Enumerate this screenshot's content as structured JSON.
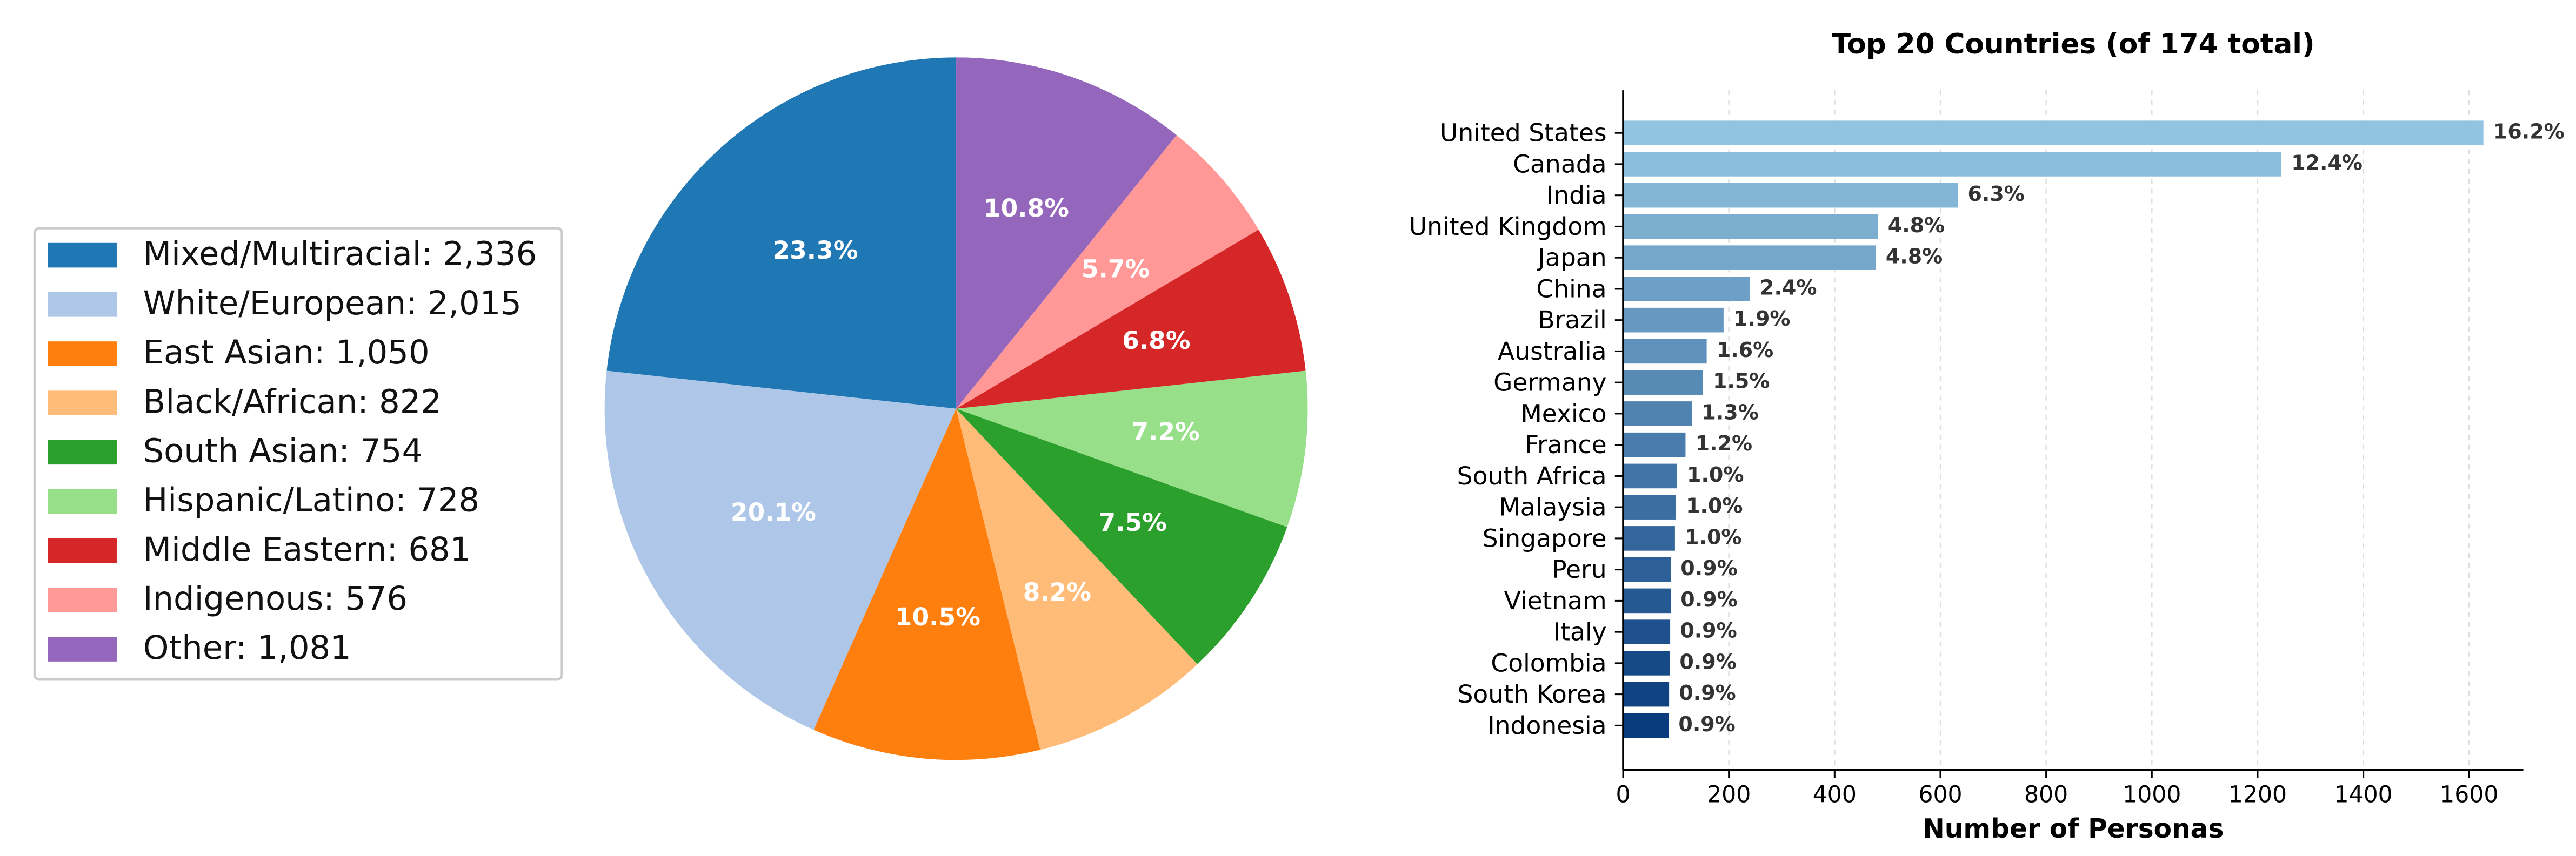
{
  "chart_data": [
    {
      "type": "pie",
      "categories": [
        "Mixed/Multiracial: 2,336",
        "White/European: 2,015",
        "East Asian: 1,050",
        "Black/African: 822",
        "South Asian: 754",
        "Hispanic/Latino: 728",
        "Middle Eastern: 681",
        "Indigenous: 576",
        "Other: 1,081"
      ],
      "values": [
        23.3,
        20.1,
        10.5,
        8.2,
        7.5,
        7.2,
        6.8,
        5.7,
        10.8
      ],
      "value_labels": [
        "23.3%",
        "20.1%",
        "10.5%",
        "8.2%",
        "7.5%",
        "7.2%",
        "6.8%",
        "5.7%",
        "10.8%"
      ],
      "colors": [
        "#1f77b4",
        "#aec7e8",
        "#ff7f0e",
        "#ffbb78",
        "#2ca02c",
        "#98df8a",
        "#d62728",
        "#ff9896",
        "#9467bd"
      ],
      "legend": "left"
    },
    {
      "type": "hbar",
      "title": "Top 20 Countries (of 174 total)",
      "xlabel": "Number of Personas",
      "categories": [
        "United States",
        "Canada",
        "India",
        "United Kingdom",
        "Japan",
        "China",
        "Brazil",
        "Australia",
        "Germany",
        "Mexico",
        "France",
        "South Africa",
        "Malaysia",
        "Singapore",
        "Peru",
        "Vietnam",
        "Italy",
        "Colombia",
        "South Korea",
        "Indonesia"
      ],
      "values": [
        1627,
        1245,
        633,
        482,
        478,
        240,
        190,
        158,
        151,
        130,
        118,
        102,
        100,
        98,
        90,
        90,
        89,
        88,
        87,
        86
      ],
      "value_labels": [
        "16.2%",
        "12.4%",
        "6.3%",
        "4.8%",
        "4.8%",
        "2.4%",
        "1.9%",
        "1.6%",
        "1.5%",
        "1.3%",
        "1.2%",
        "1.0%",
        "1.0%",
        "1.0%",
        "0.9%",
        "0.9%",
        "0.9%",
        "0.9%",
        "0.9%",
        "0.9%"
      ],
      "colors": [
        "#92c3e0",
        "#8bbcdb",
        "#83b5d6",
        "#7caed0",
        "#75a7cb",
        "#6e9fc6",
        "#6698c1",
        "#5f91bc",
        "#588ab6",
        "#5183b1",
        "#497cac",
        "#4275a7",
        "#3b6ea1",
        "#33679c",
        "#2c6097",
        "#255992",
        "#1e518d",
        "#164a87",
        "#0f4382",
        "#083c7d"
      ],
      "xlim": [
        0,
        1703
      ],
      "xticks": [
        0,
        200,
        400,
        600,
        800,
        1000,
        1200,
        1400,
        1600
      ],
      "grid": true
    }
  ]
}
